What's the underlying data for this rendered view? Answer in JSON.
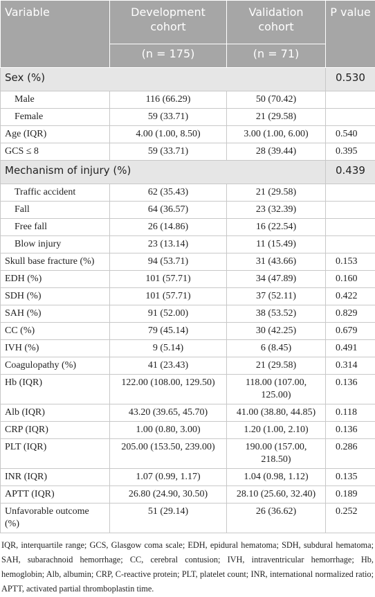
{
  "table": {
    "header": [
      "Variable",
      "Development cohort",
      "Validation cohort",
      "P value"
    ],
    "subheader": [
      "(n = 175)",
      "(n = 71)"
    ],
    "rows": [
      {
        "label": "Sex (%)",
        "p": "0.530",
        "items": [
          {
            "label": "Male",
            "development": "116 (66.29)",
            "validation": "50 (70.42)"
          },
          {
            "label": "Female",
            "development": "59 (33.71)",
            "validation": "21 (29.58)"
          }
        ]
      },
      {
        "label": "Age (IQR)",
        "development": "4.00 (1.00, 8.50)",
        "validation": "3.00 (1.00, 6.00)",
        "p": "0.540"
      },
      {
        "label": "GCS ≤ 8",
        "development": "59 (33.71)",
        "validation": "28 (39.44)",
        "p": "0.395"
      },
      {
        "label": "Mechanism of injury (%)",
        "p": "0.439",
        "items": [
          {
            "label": "Traffic accident",
            "development": "62 (35.43)",
            "validation": "21 (29.58)"
          },
          {
            "label": "Fall",
            "development": "64 (36.57)",
            "validation": "23 (32.39)"
          },
          {
            "label": "Free fall",
            "development": "26 (14.86)",
            "validation": "16 (22.54)"
          },
          {
            "label": "Blow injury",
            "development": "23 (13.14)",
            "validation": "11 (15.49)"
          }
        ]
      },
      {
        "label": "Skull base fracture (%)",
        "development": "94 (53.71)",
        "validation": "31 (43.66)",
        "p": "0.153"
      },
      {
        "label": "EDH (%)",
        "development": "101 (57.71)",
        "validation": "34 (47.89)",
        "p": "0.160"
      },
      {
        "label": "SDH (%)",
        "development": "101 (57.71)",
        "validation": "37 (52.11)",
        "p": "0.422"
      },
      {
        "label": "SAH (%)",
        "development": "91 (52.00)",
        "validation": "38 (53.52)",
        "p": "0.829"
      },
      {
        "label": "CC (%)",
        "development": "79 (45.14)",
        "validation": "30 (42.25)",
        "p": "0.679"
      },
      {
        "label": "IVH (%)",
        "development": "9 (5.14)",
        "validation": "6 (8.45)",
        "p": "0.491"
      },
      {
        "label": "Coagulopathy (%)",
        "development": "41 (23.43)",
        "validation": "21 (29.58)",
        "p": "0.314"
      },
      {
        "label": "Hb (IQR)",
        "development": "122.00 (108.00, 129.50)",
        "validation": "118.00 (107.00, 125.00)",
        "p": "0.136"
      },
      {
        "label": "Alb (IQR)",
        "development": "43.20 (39.65, 45.70)",
        "validation": "41.00 (38.80, 44.85)",
        "p": "0.118"
      },
      {
        "label": "CRP (IQR)",
        "development": "1.00 (0.80, 3.00)",
        "validation": "1.20 (1.00, 2.10)",
        "p": "0.136"
      },
      {
        "label": "PLT (IQR)",
        "development": "205.00 (153.50, 239.00)",
        "validation": "190.00 (157.00, 218.50)",
        "p": "0.286"
      },
      {
        "label": "INR (IQR)",
        "development": "1.07 (0.99, 1.17)",
        "validation": "1.04 (0.98, 1.12)",
        "p": "0.135"
      },
      {
        "label": "APTT (IQR)",
        "development": "26.80 (24.90, 30.50)",
        "validation": "28.10 (25.60, 32.40)",
        "p": "0.189"
      },
      {
        "label": "Unfavorable outcome (%)",
        "development": "51 (29.14)",
        "validation": "26 (36.62)",
        "p": "0.252"
      }
    ]
  },
  "footnote": "IQR, interquartile range; GCS, Glasgow coma scale; EDH, epidural hematoma; SDH, subdural hematoma; SAH, subarachnoid hemorrhage; CC, cerebral contusion; IVH, intraventricular hemorrhage; Hb, hemoglobin; Alb, albumin; CRP, C-reactive protein; PLT, platelet count; INR, international normalized ratio; APTT, activated partial thromboplastin time."
}
